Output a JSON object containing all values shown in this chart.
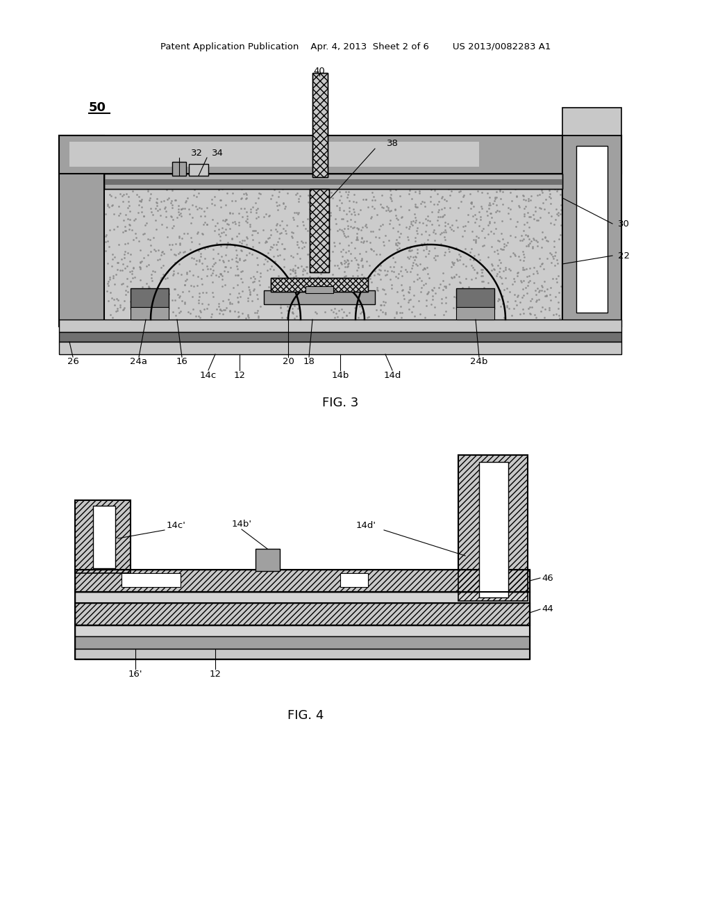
{
  "bg_color": "#ffffff",
  "header": "Patent Application Publication    Apr. 4, 2013  Sheet 2 of 6        US 2013/0082283 A1",
  "fig3_caption": "FIG. 3",
  "fig4_caption": "FIG. 4",
  "light_gray": "#c8c8c8",
  "mid_gray": "#a0a0a0",
  "dark_gray": "#707070",
  "very_dark": "#404040",
  "white": "#ffffff",
  "stipple_color": "#c0c0c0",
  "hatch_color": "#909090"
}
